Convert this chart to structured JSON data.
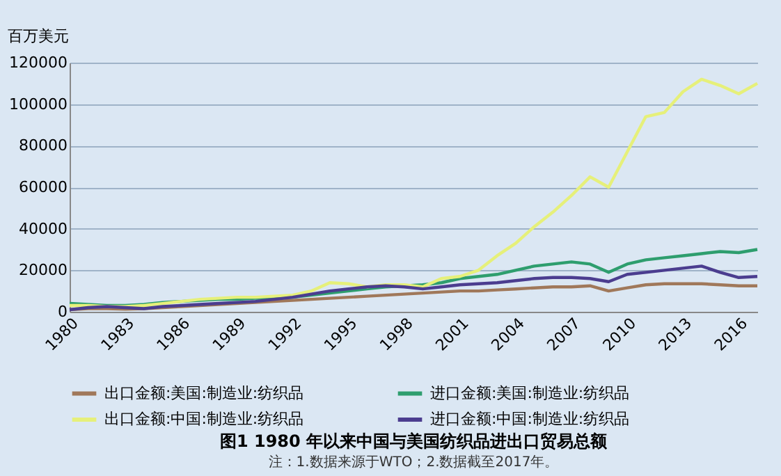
{
  "chart_data": {
    "type": "line",
    "title": "图1   1980 年以来中国与美国纺织品进出口贸易总额",
    "ylabel": "百万美元",
    "annotations": [
      "注：1.数据来源于WTO；2.数据截至2017年。"
    ],
    "x": [
      1980,
      1981,
      1982,
      1983,
      1984,
      1985,
      1986,
      1987,
      1988,
      1989,
      1990,
      1991,
      1992,
      1993,
      1994,
      1995,
      1996,
      1997,
      1998,
      1999,
      2000,
      2001,
      2002,
      2003,
      2004,
      2005,
      2006,
      2007,
      2008,
      2009,
      2010,
      2011,
      2012,
      2013,
      2014,
      2015,
      2016,
      2017
    ],
    "xlim": [
      1980,
      2017
    ],
    "xticks": [
      1980,
      1983,
      1986,
      1989,
      1992,
      1995,
      1998,
      2001,
      2004,
      2007,
      2010,
      2013,
      2016
    ],
    "ylim": [
      0,
      120000
    ],
    "yticks": [
      0,
      20000,
      40000,
      60000,
      80000,
      100000,
      120000
    ],
    "grid": "y",
    "legend": "bottom",
    "line_style": "solid",
    "marker": "none",
    "series": [
      {
        "name": "出口金额:美国:制造业:纺织品",
        "color": "#a0785a",
        "values": [
          1000,
          1500,
          1500,
          1200,
          1500,
          2000,
          2500,
          3000,
          3500,
          4000,
          4500,
          5000,
          5500,
          6000,
          6500,
          7000,
          7500,
          8000,
          8500,
          9000,
          9500,
          10000,
          10000,
          10500,
          11000,
          11500,
          12000,
          12000,
          12500,
          10000,
          11500,
          13000,
          13500,
          13500,
          13500,
          13000,
          12500,
          12500
        ]
      },
      {
        "name": "进口金额:美国:制造业:纺织品",
        "color": "#2e9e6e",
        "values": [
          4000,
          3500,
          3000,
          3000,
          3500,
          4500,
          5000,
          5500,
          6000,
          6000,
          6500,
          6500,
          7000,
          8000,
          9000,
          10000,
          11000,
          12000,
          12500,
          13000,
          14000,
          16000,
          17000,
          18000,
          20000,
          22000,
          23000,
          24000,
          23000,
          19000,
          23000,
          25000,
          26000,
          27000,
          28000,
          29000,
          28500,
          30000
        ]
      },
      {
        "name": "出口金额:中国:制造业:纺织品",
        "color": "#e6f07a",
        "values": [
          3000,
          3000,
          2500,
          2500,
          3000,
          4000,
          5000,
          6000,
          6500,
          7000,
          7000,
          7500,
          8000,
          10000,
          14000,
          13500,
          12000,
          13000,
          13000,
          12000,
          16000,
          17000,
          20000,
          27000,
          33000,
          41000,
          48000,
          56000,
          65000,
          60000,
          77000,
          94000,
          96000,
          106000,
          112000,
          109000,
          105000,
          110000
        ]
      },
      {
        "name": "进口金额:中国:制造业:纺织品",
        "color": "#4b3d8f",
        "values": [
          1000,
          2000,
          2500,
          2000,
          1500,
          2500,
          3000,
          3500,
          4000,
          4500,
          5000,
          6000,
          7000,
          8500,
          10000,
          11000,
          12000,
          12500,
          12000,
          11000,
          12000,
          13000,
          13500,
          14000,
          15000,
          16000,
          16500,
          16500,
          16000,
          14500,
          18000,
          19000,
          20000,
          21000,
          22000,
          19000,
          16500,
          17000
        ]
      }
    ]
  }
}
